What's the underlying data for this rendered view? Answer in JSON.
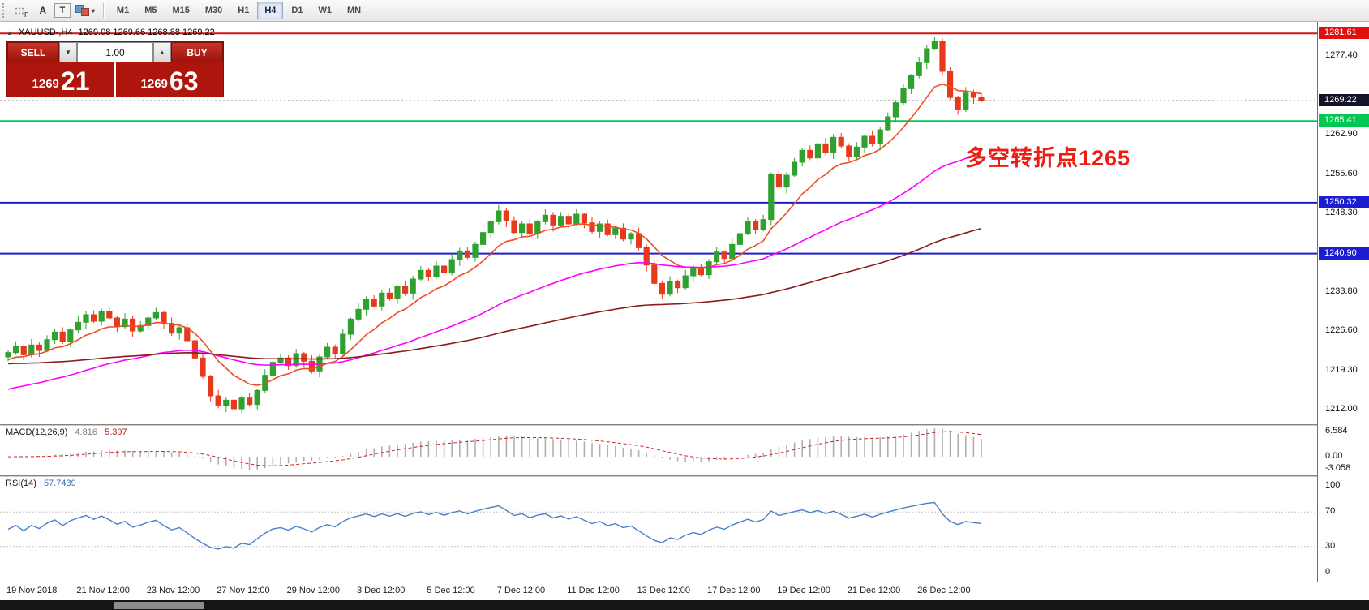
{
  "toolbar": {
    "f_label": "F",
    "a_label": "A",
    "t_label": "T",
    "caret": "▾",
    "timeframes": [
      {
        "label": "M1",
        "active": false
      },
      {
        "label": "M5",
        "active": false
      },
      {
        "label": "M15",
        "active": false
      },
      {
        "label": "M30",
        "active": false
      },
      {
        "label": "H1",
        "active": false
      },
      {
        "label": "H4",
        "active": true
      },
      {
        "label": "D1",
        "active": false
      },
      {
        "label": "W1",
        "active": false
      },
      {
        "label": "MN",
        "active": false
      }
    ]
  },
  "chart": {
    "icon_glyph": "▲",
    "symbol_tf": "XAUUSD-,H4",
    "ohlc": "1269.08 1269.66 1268.88 1269.22"
  },
  "trade_panel": {
    "sell_label": "SELL",
    "buy_label": "BUY",
    "volume": "1.00",
    "down_caret": "▼",
    "up_caret": "▲",
    "sell_price_main": "1269",
    "sell_price_big": "21",
    "buy_price_main": "1269",
    "buy_price_big": "63"
  },
  "annotation": {
    "text": "多空转折点1265"
  },
  "axis": {
    "price_ticks": [
      "1277.40",
      "1262.90",
      "1255.60",
      "1248.30",
      "1233.80",
      "1226.60",
      "1219.30",
      "1212.00"
    ],
    "tags": [
      {
        "text": "1281.61",
        "price": 1281.61,
        "bg": "#e01010",
        "fg": "#ffffff"
      },
      {
        "text": "1269.22",
        "price": 1269.22,
        "bg": "#15152a",
        "fg": "#ffffff"
      },
      {
        "text": "1265.41",
        "price": 1265.41,
        "bg": "#00c853",
        "fg": "#ffffff"
      },
      {
        "text": "1250.32",
        "price": 1250.32,
        "bg": "#1d1dd0",
        "fg": "#ffffff"
      },
      {
        "text": "1240.90",
        "price": 1240.9,
        "bg": "#1d1dd0",
        "fg": "#ffffff"
      }
    ],
    "time_labels": [
      {
        "text": "19 Nov 2018",
        "idx": 0
      },
      {
        "text": "21 Nov 12:00",
        "idx": 9
      },
      {
        "text": "23 Nov 12:00",
        "idx": 18
      },
      {
        "text": "27 Nov 12:00",
        "idx": 27
      },
      {
        "text": "29 Nov 12:00",
        "idx": 36
      },
      {
        "text": "3 Dec 12:00",
        "idx": 45
      },
      {
        "text": "5 Dec 12:00",
        "idx": 54
      },
      {
        "text": "7 Dec 12:00",
        "idx": 63
      },
      {
        "text": "11 Dec 12:00",
        "idx": 72
      },
      {
        "text": "13 Dec 12:00",
        "idx": 81
      },
      {
        "text": "17 Dec 12:00",
        "idx": 90
      },
      {
        "text": "19 Dec 12:00",
        "idx": 99
      },
      {
        "text": "21 Dec 12:00",
        "idx": 108
      },
      {
        "text": "26 Dec 12:00",
        "idx": 117
      }
    ]
  },
  "macd": {
    "header": "MACD(12,26,9)",
    "value_main": "4.816",
    "value_signal": "5.397",
    "axis": [
      {
        "text": "6.584",
        "v": 6.584
      },
      {
        "text": "0.00",
        "v": 0
      },
      {
        "text": "-3.058",
        "v": -3.058
      }
    ]
  },
  "rsi": {
    "header": "RSI(14)",
    "value": "57.7439",
    "axis": [
      {
        "text": "100",
        "v": 100
      },
      {
        "text": "70",
        "v": 70
      },
      {
        "text": "30",
        "v": 30
      },
      {
        "text": "0",
        "v": 0
      }
    ]
  },
  "chart_data": {
    "type": "candlestick",
    "symbol": "XAUUSD",
    "timeframe": "H4",
    "price_range": [
      1209.8,
      1283.0
    ],
    "first_open": 1221.8,
    "closes": [
      1222.6,
      1223.8,
      1222.2,
      1224.0,
      1223.0,
      1225.0,
      1226.4,
      1224.6,
      1226.8,
      1228.2,
      1229.6,
      1228.4,
      1230.2,
      1229.0,
      1227.4,
      1228.8,
      1226.6,
      1227.6,
      1229.0,
      1230.0,
      1228.0,
      1226.2,
      1227.2,
      1224.8,
      1221.6,
      1218.2,
      1214.6,
      1212.8,
      1213.8,
      1212.2,
      1214.2,
      1213.0,
      1215.6,
      1218.4,
      1220.8,
      1221.6,
      1220.2,
      1222.4,
      1221.0,
      1219.2,
      1221.8,
      1223.6,
      1222.4,
      1226.0,
      1228.8,
      1230.6,
      1232.4,
      1231.2,
      1233.6,
      1232.6,
      1234.8,
      1233.6,
      1236.2,
      1237.8,
      1236.6,
      1238.6,
      1237.4,
      1239.8,
      1241.4,
      1240.2,
      1242.6,
      1244.8,
      1246.8,
      1248.8,
      1247.0,
      1244.8,
      1246.4,
      1244.6,
      1246.8,
      1248.0,
      1246.2,
      1247.8,
      1246.4,
      1248.2,
      1246.6,
      1245.0,
      1246.4,
      1244.4,
      1245.6,
      1243.6,
      1244.6,
      1242.0,
      1238.8,
      1235.4,
      1233.4,
      1235.8,
      1234.6,
      1236.8,
      1238.2,
      1237.0,
      1239.4,
      1241.2,
      1240.0,
      1242.6,
      1244.6,
      1246.8,
      1245.4,
      1247.2,
      1255.6,
      1253.2,
      1255.4,
      1257.8,
      1260.0,
      1258.6,
      1261.2,
      1259.6,
      1262.4,
      1260.8,
      1258.8,
      1260.6,
      1262.6,
      1261.2,
      1263.8,
      1266.2,
      1268.8,
      1271.4,
      1273.8,
      1276.2,
      1278.8,
      1280.2,
      1274.6,
      1269.8,
      1267.6,
      1270.6,
      1269.8,
      1269.2
    ],
    "wick_hi": [
      0.5,
      0.9,
      0.3,
      1.1,
      0.6,
      0.8
    ],
    "wick_lo": [
      0.8,
      0.4,
      1.0,
      0.5,
      1.2,
      0.3
    ],
    "up_color": "#2fa12f",
    "down_color": "#e8391d",
    "bid_price": 1269.22,
    "hlines": [
      {
        "price": 1281.61,
        "color": "#d51212",
        "width": 2
      },
      {
        "price": 1265.41,
        "color": "#00cc55",
        "width": 2
      },
      {
        "price": 1250.32,
        "color": "#1d1dd0",
        "width": 2
      },
      {
        "price": 1240.9,
        "color": "#1d1dd0",
        "width": 2
      }
    ],
    "ma": [
      {
        "period": 10,
        "seed": 1221.0,
        "color": "#ee4e20"
      },
      {
        "period": 45,
        "seed": 1215.5,
        "color": "#ff00ff"
      },
      {
        "period": 120,
        "seed": 1220.5,
        "color": "#8b1a1a"
      }
    ],
    "macd_params": "12,26,9",
    "macd_range": [
      -4.2,
      7.4
    ],
    "rsi_params": "14",
    "rsi_levels": [
      70,
      30
    ],
    "rsi_range": [
      -8,
      108
    ]
  }
}
